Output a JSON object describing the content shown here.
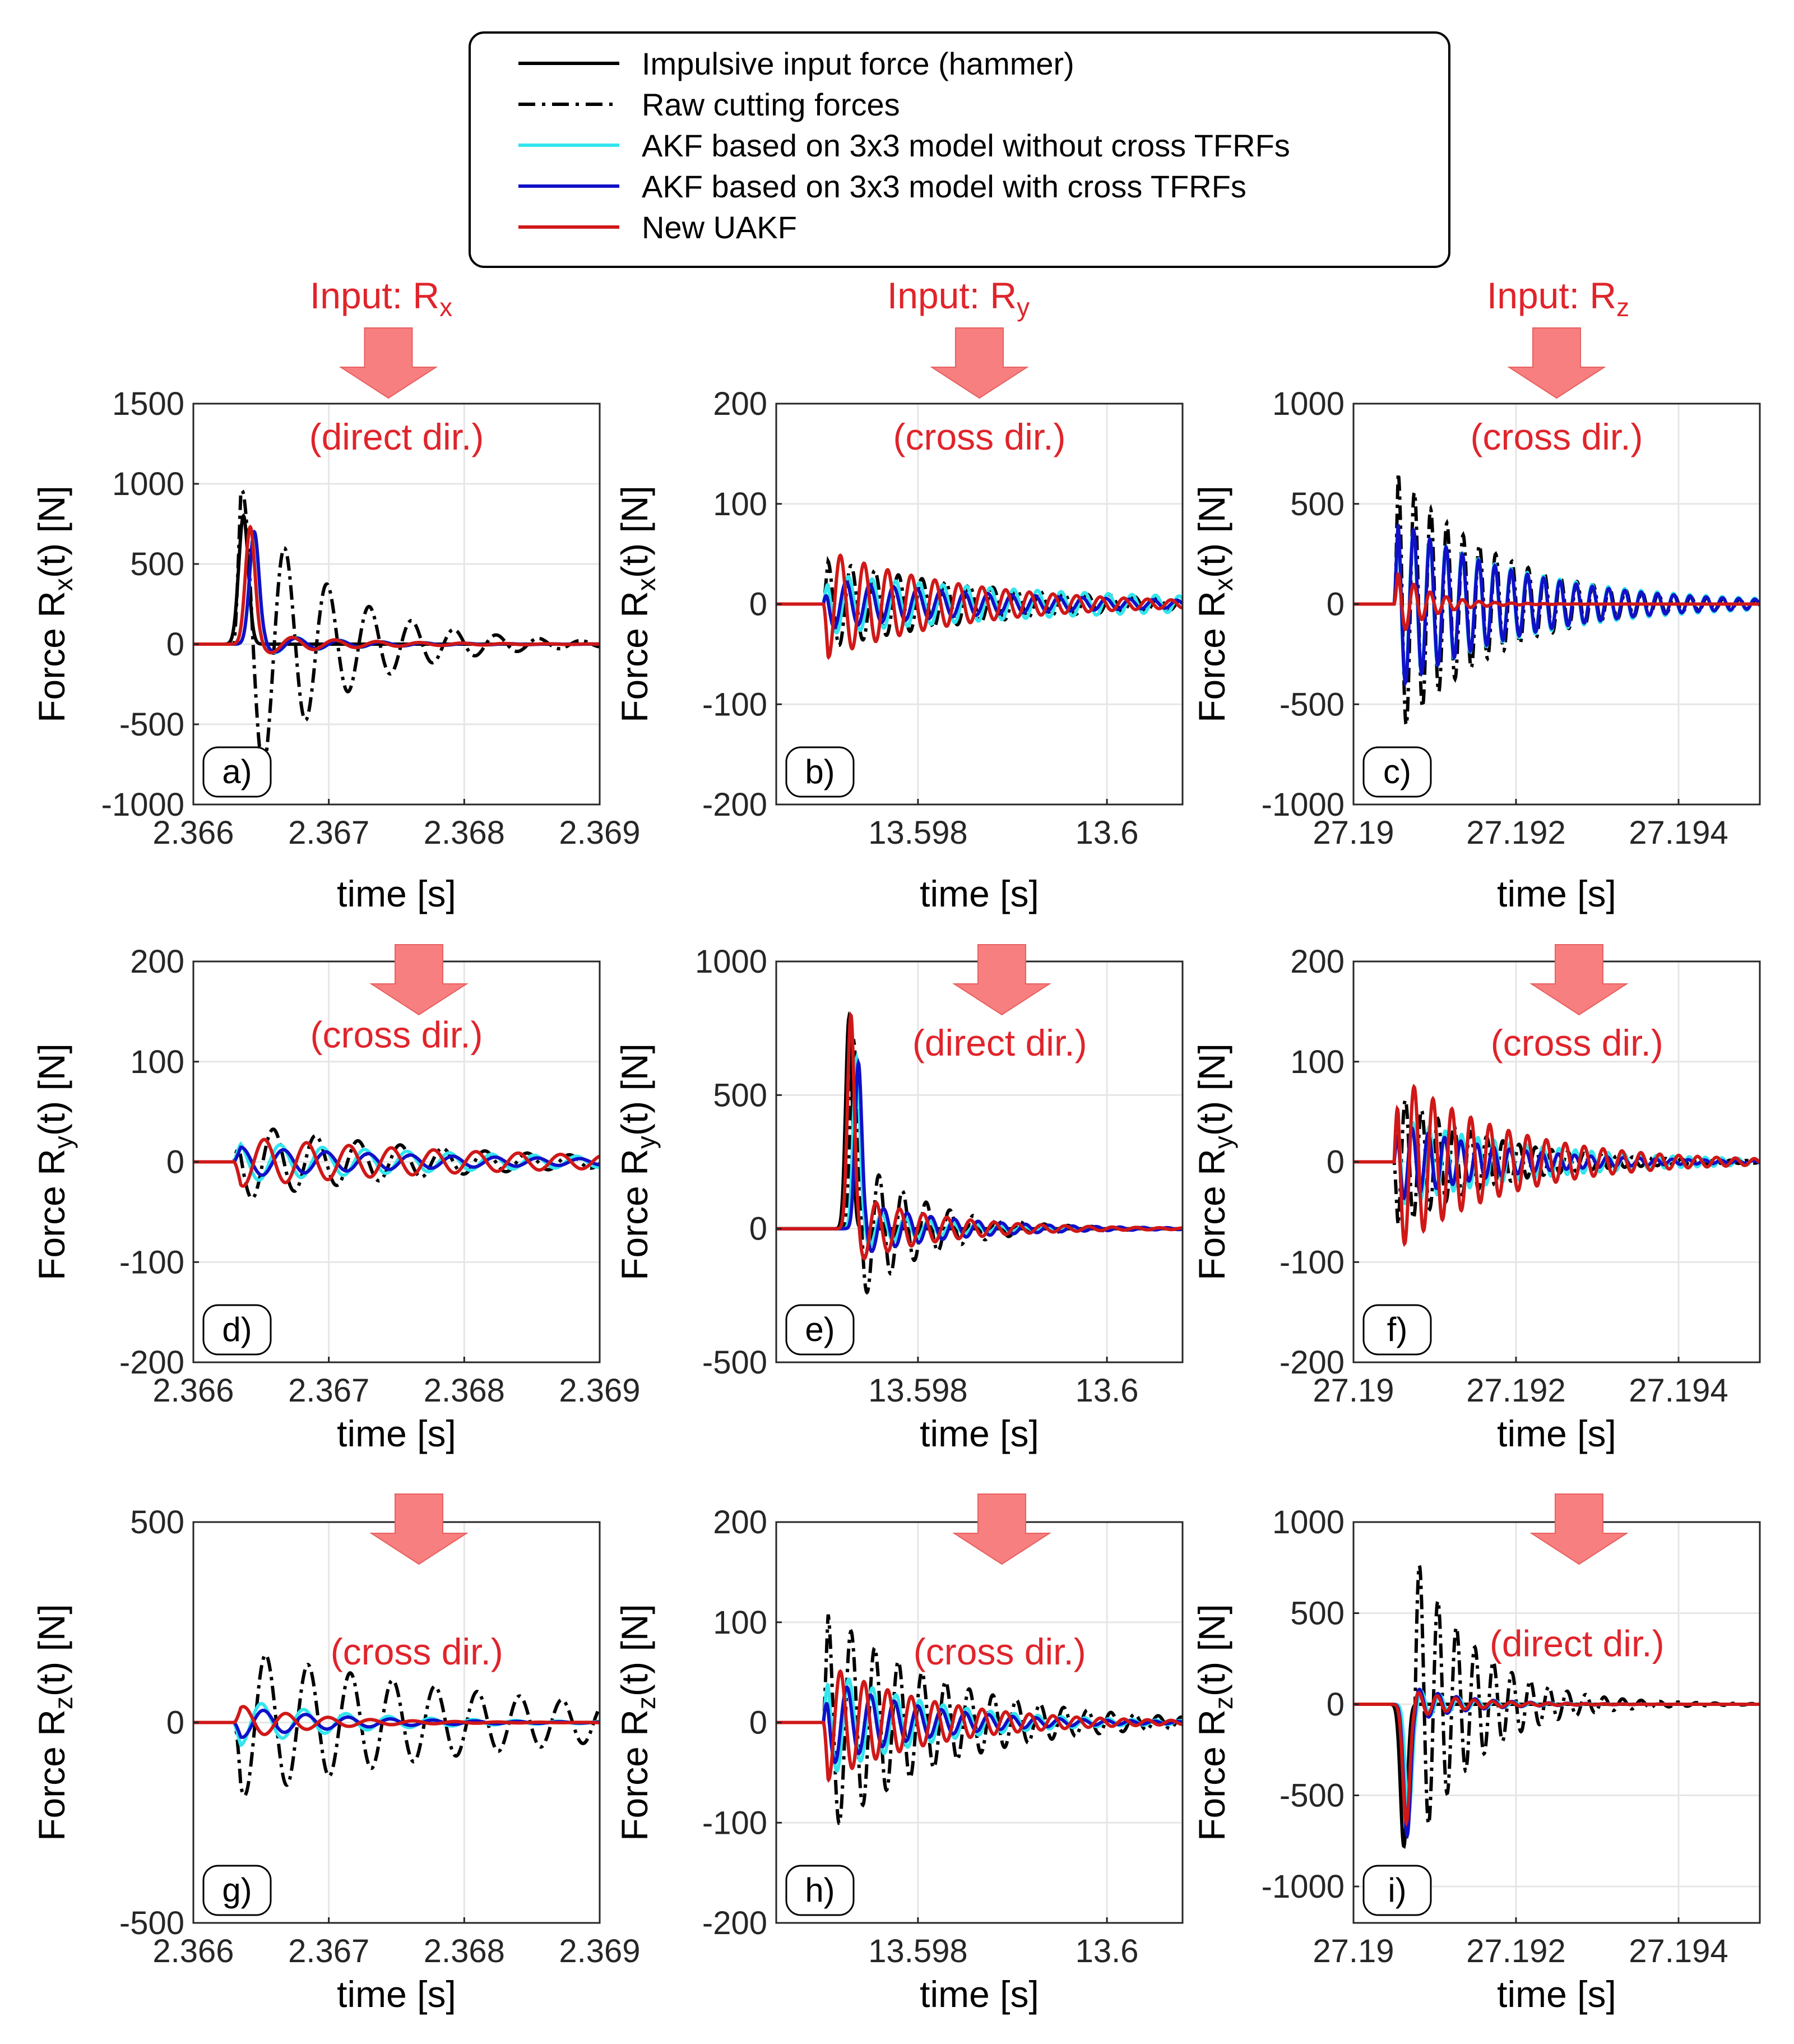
{
  "colors": {
    "hammer": "#000000",
    "raw": "#000000",
    "akf_no_cross": "#33e5ee",
    "akf_cross": "#1010c8",
    "uakf": "#d01818",
    "annotation": "#e0242b",
    "arrow": "#f77f7f",
    "grid": "#e6e6e6"
  },
  "legend": {
    "entries": [
      {
        "label": "Impulsive input force (hammer)",
        "style": "solid",
        "color": "#000000"
      },
      {
        "label": "Raw cutting forces",
        "style": "dashdot",
        "color": "#000000"
      },
      {
        "label": "AKF based on 3x3 model without cross TFRFs",
        "style": "solid",
        "color": "#33e5ee"
      },
      {
        "label": "AKF based on 3x3 model with cross TFRFs",
        "style": "solid",
        "color": "#1010c8"
      },
      {
        "label": "New UAKF",
        "style": "solid",
        "color": "#d01818"
      }
    ]
  },
  "column_headers": [
    {
      "prefix": "Input: R",
      "sub": "x"
    },
    {
      "prefix": "Input: R",
      "sub": "y"
    },
    {
      "prefix": "Input: R",
      "sub": "z"
    }
  ],
  "chart_data": [
    {
      "id": "a",
      "letter": "a)",
      "type": "line",
      "col": 0,
      "row": 0,
      "note": "(direct dir.)",
      "xlabel": "time [s]",
      "ylabel_prefix": "Force R",
      "ylabel_sub": "x",
      "ylabel_suffix": "(t) [N]",
      "xlim": [
        2.366,
        2.369
      ],
      "ylim": [
        -1000,
        1500
      ],
      "xticks": [
        2.366,
        2.367,
        2.368,
        2.369
      ],
      "xtick_labels": [
        "2.366",
        "2.367",
        "2.368",
        "2.369"
      ],
      "yticks": [
        -1000,
        -500,
        0,
        500,
        1000,
        1500
      ],
      "ytick_labels": [
        "-1000",
        "-500",
        "0",
        "500",
        "1000",
        "1500"
      ],
      "t0": 2.3663,
      "x_end": 2.369,
      "series": [
        {
          "name": "Impulsive input force (hammer)",
          "kind": "pulse",
          "amp": 800,
          "center": 2.36637,
          "width": 5e-05
        },
        {
          "name": "Raw cutting forces",
          "kind": "osc",
          "amp": 1050,
          "phase": 0.3,
          "freq": 3200,
          "decay": 1500
        },
        {
          "name": "AKF based on 3x3 model without cross TFRFs",
          "kind": "pulsetail",
          "amp": 680,
          "center": 2.36645,
          "width": 5e-05,
          "tail_amp": 60,
          "tail_freq": 3200,
          "tail_decay": 1600
        },
        {
          "name": "AKF based on 3x3 model with cross TFRFs",
          "kind": "pulsetail",
          "amp": 700,
          "center": 2.36645,
          "width": 5e-05,
          "tail_amp": 55,
          "tail_freq": 3200,
          "tail_decay": 1600
        },
        {
          "name": "New UAKF",
          "kind": "pulsetail",
          "amp": 730,
          "center": 2.36642,
          "width": 5e-05,
          "tail_amp": 60,
          "tail_freq": 3200,
          "tail_decay": 1500
        }
      ]
    },
    {
      "id": "b",
      "letter": "b)",
      "type": "line",
      "col": 1,
      "row": 0,
      "note": "(cross dir.)",
      "xlabel": "time [s]",
      "ylabel_prefix": "Force R",
      "ylabel_sub": "x",
      "ylabel_suffix": "(t) [N]",
      "xlim": [
        13.5965,
        13.6008
      ],
      "ylim": [
        -200,
        200
      ],
      "xticks": [
        13.598,
        13.6
      ],
      "xtick_labels": [
        "13.598",
        "13.6"
      ],
      "yticks": [
        -200,
        -100,
        0,
        100,
        200
      ],
      "ytick_labels": [
        "-200",
        "-100",
        "0",
        "100",
        "200"
      ],
      "t0": 13.597,
      "x_end": 13.6008,
      "series": [
        {
          "name": "Raw cutting forces",
          "kind": "osc",
          "amp": 45,
          "phase": 0.5,
          "freq": 4000,
          "decay": 550
        },
        {
          "name": "AKF based on 3x3 model without cross TFRFs",
          "kind": "osc",
          "amp": 30,
          "phase": 1.2,
          "freq": 4000,
          "decay": 350
        },
        {
          "name": "AKF based on 3x3 model with cross TFRFs",
          "kind": "osc",
          "amp": 25,
          "phase": 1.8,
          "freq": 4000,
          "decay": 500
        },
        {
          "name": "New UAKF",
          "kind": "osc",
          "amp": -55,
          "phase": 0.2,
          "freq": 4000,
          "decay": 700
        }
      ]
    },
    {
      "id": "c",
      "letter": "c)",
      "type": "line",
      "col": 2,
      "row": 0,
      "note": "(cross dir.)",
      "xlabel": "time [s]",
      "ylabel_prefix": "Force R",
      "ylabel_sub": "x",
      "ylabel_suffix": "(t) [N]",
      "xlim": [
        27.19,
        27.195
      ],
      "ylim": [
        -1000,
        1000
      ],
      "xticks": [
        27.19,
        27.192,
        27.194
      ],
      "xtick_labels": [
        "27.19",
        "27.192",
        "27.194"
      ],
      "yticks": [
        -1000,
        -500,
        0,
        500,
        1000
      ],
      "ytick_labels": [
        "-1000",
        "-500",
        "0",
        "500",
        "1000"
      ],
      "t0": 27.1905,
      "x_end": 27.195,
      "series": [
        {
          "name": "Raw cutting forces",
          "kind": "osc",
          "amp": 680,
          "phase": 0.0,
          "freq": 5000,
          "decay": 800
        },
        {
          "name": "AKF based on 3x3 model without cross TFRFs",
          "kind": "osc",
          "amp": 420,
          "phase": 0.4,
          "freq": 5000,
          "decay": 600
        },
        {
          "name": "AKF based on 3x3 model with cross TFRFs",
          "kind": "osc",
          "amp": 430,
          "phase": 0.3,
          "freq": 5000,
          "decay": 650
        },
        {
          "name": "New UAKF",
          "kind": "osc",
          "amp": 180,
          "phase": 0.2,
          "freq": 5000,
          "decay": 2500
        }
      ]
    },
    {
      "id": "d",
      "letter": "d)",
      "type": "line",
      "col": 0,
      "row": 1,
      "note": "(cross dir.)",
      "xlabel": "time [s]",
      "ylabel_prefix": "Force R",
      "ylabel_sub": "y",
      "ylabel_suffix": "(t) [N]",
      "xlim": [
        2.366,
        2.369
      ],
      "ylim": [
        -200,
        200
      ],
      "xticks": [
        2.366,
        2.367,
        2.368,
        2.369
      ],
      "xtick_labels": [
        "2.366",
        "2.367",
        "2.368",
        "2.369"
      ],
      "yticks": [
        -200,
        -100,
        0,
        100,
        200
      ],
      "ytick_labels": [
        "-200",
        "-100",
        "0",
        "100",
        "200"
      ],
      "t0": 2.3663,
      "x_end": 2.369,
      "series": [
        {
          "name": "Raw cutting forces",
          "kind": "osc",
          "amp": 40,
          "phase": 2.0,
          "freq": 3200,
          "decay": 700
        },
        {
          "name": "AKF based on 3x3 model without cross TFRFs",
          "kind": "osc",
          "amp": 20,
          "phase": 1.0,
          "freq": 3200,
          "decay": 500
        },
        {
          "name": "AKF based on 3x3 model with cross TFRFs",
          "kind": "osc",
          "amp": 15,
          "phase": 0.5,
          "freq": 3200,
          "decay": 600
        },
        {
          "name": "New UAKF",
          "kind": "osc",
          "amp": -25,
          "phase": 0.2,
          "freq": 3200,
          "decay": 500
        }
      ]
    },
    {
      "id": "e",
      "letter": "e)",
      "type": "line",
      "col": 1,
      "row": 1,
      "note": "(direct dir.)",
      "xlabel": "time [s]",
      "ylabel_prefix": "Force R",
      "ylabel_sub": "y",
      "ylabel_suffix": "(t) [N]",
      "xlim": [
        13.5965,
        13.6008
      ],
      "ylim": [
        -500,
        1000
      ],
      "xticks": [
        13.598,
        13.6
      ],
      "xtick_labels": [
        "13.598",
        "13.6"
      ],
      "yticks": [
        -500,
        0,
        500,
        1000
      ],
      "ytick_labels": [
        "-500",
        "0",
        "500",
        "1000"
      ],
      "t0": 13.597,
      "x_end": 13.6008,
      "series": [
        {
          "name": "Impulsive input force (hammer)",
          "kind": "pulse",
          "amp": 790,
          "center": 13.59727,
          "width": 5e-05
        },
        {
          "name": "Raw cutting forces",
          "kind": "pulsetail",
          "amp": 700,
          "center": 13.59732,
          "width": 5e-05,
          "tail_amp": 260,
          "tail_freq": 4000,
          "tail_decay": 1400
        },
        {
          "name": "AKF based on 3x3 model without cross TFRFs",
          "kind": "pulsetail",
          "amp": 640,
          "center": 13.59735,
          "width": 5e-05,
          "tail_amp": 70,
          "tail_freq": 4000,
          "tail_decay": 1200
        },
        {
          "name": "AKF based on 3x3 model with cross TFRFs",
          "kind": "pulsetail",
          "amp": 620,
          "center": 13.59737,
          "width": 5e-05,
          "tail_amp": 90,
          "tail_freq": 4000,
          "tail_decay": 1000
        },
        {
          "name": "New UAKF",
          "kind": "pulsetail",
          "amp": 800,
          "center": 13.59729,
          "width": 5e-05,
          "tail_amp": 120,
          "tail_freq": 4000,
          "tail_decay": 1100
        }
      ]
    },
    {
      "id": "f",
      "letter": "f)",
      "type": "line",
      "col": 2,
      "row": 1,
      "note": "(cross dir.)",
      "xlabel": "time [s]",
      "ylabel_prefix": "Force R",
      "ylabel_sub": "y",
      "ylabel_suffix": "(t) [N]",
      "xlim": [
        27.19,
        27.195
      ],
      "ylim": [
        -200,
        200
      ],
      "xticks": [
        27.19,
        27.192,
        27.194
      ],
      "xtick_labels": [
        "27.19",
        "27.192",
        "27.194"
      ],
      "yticks": [
        -200,
        -100,
        0,
        100,
        200
      ],
      "ytick_labels": [
        "-200",
        "-100",
        "0",
        "100",
        "200"
      ],
      "t0": 27.1905,
      "x_end": 27.195,
      "series": [
        {
          "name": "Raw cutting forces",
          "kind": "osc",
          "amp": 70,
          "phase": 3.5,
          "freq": 5000,
          "decay": 900
        },
        {
          "name": "AKF based on 3x3 model without cross TFRFs",
          "kind": "osc",
          "amp": 45,
          "phase": 0.6,
          "freq": 5000,
          "decay": 600
        },
        {
          "name": "AKF based on 3x3 model with cross TFRFs",
          "kind": "osc",
          "amp": 40,
          "phase": 0.9,
          "freq": 5000,
          "decay": 800
        },
        {
          "name": "New UAKF",
          "kind": "osc",
          "amp": 90,
          "phase": 1.2,
          "freq": 4300,
          "decay": 750
        }
      ]
    },
    {
      "id": "g",
      "letter": "g)",
      "type": "line",
      "col": 0,
      "row": 2,
      "note": "(cross dir.)",
      "xlabel": "time [s]",
      "ylabel_prefix": "Force R",
      "ylabel_sub": "z",
      "ylabel_suffix": "(t) [N]",
      "xlim": [
        2.366,
        2.369
      ],
      "ylim": [
        -500,
        500
      ],
      "xticks": [
        2.366,
        2.367,
        2.368,
        2.369
      ],
      "xtick_labels": [
        "2.366",
        "2.367",
        "2.368",
        "2.369"
      ],
      "yticks": [
        -500,
        0,
        500
      ],
      "ytick_labels": [
        "-500",
        "0",
        "500"
      ],
      "t0": 2.3663,
      "x_end": 2.369,
      "series": [
        {
          "name": "Raw cutting forces",
          "kind": "osc",
          "amp": -190,
          "phase": 0.0,
          "freq": 3200,
          "decay": 500
        },
        {
          "name": "AKF based on 3x3 model without cross TFRFs",
          "kind": "osc",
          "amp": -60,
          "phase": 0.6,
          "freq": 3200,
          "decay": 1200
        },
        {
          "name": "AKF based on 3x3 model with cross TFRFs",
          "kind": "osc",
          "amp": -40,
          "phase": 0.3,
          "freq": 3200,
          "decay": 1300
        },
        {
          "name": "New UAKF",
          "kind": "osc",
          "amp": 45,
          "phase": 0.1,
          "freq": 3200,
          "decay": 1800
        }
      ]
    },
    {
      "id": "h",
      "letter": "h)",
      "type": "line",
      "col": 1,
      "row": 2,
      "note": "(cross dir.)",
      "xlabel": "time [s]",
      "ylabel_prefix": "Force R",
      "ylabel_sub": "z",
      "ylabel_suffix": "(t) [N]",
      "xlim": [
        13.5965,
        13.6008
      ],
      "ylim": [
        -200,
        200
      ],
      "xticks": [
        13.598,
        13.6
      ],
      "xtick_labels": [
        "13.598",
        "13.6"
      ],
      "yticks": [
        -200,
        -100,
        0,
        100,
        200
      ],
      "ytick_labels": [
        "-200",
        "-100",
        "0",
        "100",
        "200"
      ],
      "t0": 13.597,
      "x_end": 13.6008,
      "series": [
        {
          "name": "Raw cutting forces",
          "kind": "osc",
          "amp": 115,
          "phase": 0.5,
          "freq": 4000,
          "decay": 800
        },
        {
          "name": "AKF based on 3x3 model without cross TFRFs",
          "kind": "osc",
          "amp": 55,
          "phase": 1.1,
          "freq": 4000,
          "decay": 900
        },
        {
          "name": "AKF based on 3x3 model with cross TFRFs",
          "kind": "osc",
          "amp": 45,
          "phase": 1.6,
          "freq": 4000,
          "decay": 1000
        },
        {
          "name": "New UAKF",
          "kind": "osc",
          "amp": -60,
          "phase": 0.2,
          "freq": 4000,
          "decay": 900
        }
      ]
    },
    {
      "id": "i",
      "letter": "i)",
      "type": "line",
      "col": 2,
      "row": 2,
      "note": "(direct dir.)",
      "xlabel": "time [s]",
      "ylabel_prefix": "Force R",
      "ylabel_sub": "z",
      "ylabel_suffix": "(t) [N]",
      "xlim": [
        27.19,
        27.195
      ],
      "ylim": [
        -1200,
        1000
      ],
      "xticks": [
        27.19,
        27.192,
        27.194
      ],
      "xtick_labels": [
        "27.19",
        "27.192",
        "27.194"
      ],
      "yticks": [
        -1000,
        -500,
        0,
        500,
        1000
      ],
      "ytick_labels": [
        "-1000",
        "-500",
        "0",
        "500",
        "1000"
      ],
      "t0": 27.1905,
      "x_end": 27.195,
      "series": [
        {
          "name": "Impulsive input force (hammer)",
          "kind": "pulse",
          "amp": -780,
          "center": 27.19062,
          "width": 6e-05
        },
        {
          "name": "Raw cutting forces",
          "kind": "pulsetail",
          "amp": -700,
          "center": 27.19066,
          "width": 6e-05,
          "tail_amp": 820,
          "tail_freq": 4400,
          "tail_decay": 1300
        },
        {
          "name": "AKF based on 3x3 model without cross TFRFs",
          "kind": "pulsetail",
          "amp": -600,
          "center": 27.19068,
          "width": 6e-05,
          "tail_amp": 80,
          "tail_freq": 4400,
          "tail_decay": 1500
        },
        {
          "name": "AKF based on 3x3 model with cross TFRFs",
          "kind": "pulsetail",
          "amp": -720,
          "center": 27.19066,
          "width": 6e-05,
          "tail_amp": 90,
          "tail_freq": 4400,
          "tail_decay": 1500
        },
        {
          "name": "New UAKF",
          "kind": "pulsetail",
          "amp": -650,
          "center": 27.19065,
          "width": 6e-05,
          "tail_amp": 70,
          "tail_freq": 4400,
          "tail_decay": 1500
        }
      ]
    }
  ]
}
